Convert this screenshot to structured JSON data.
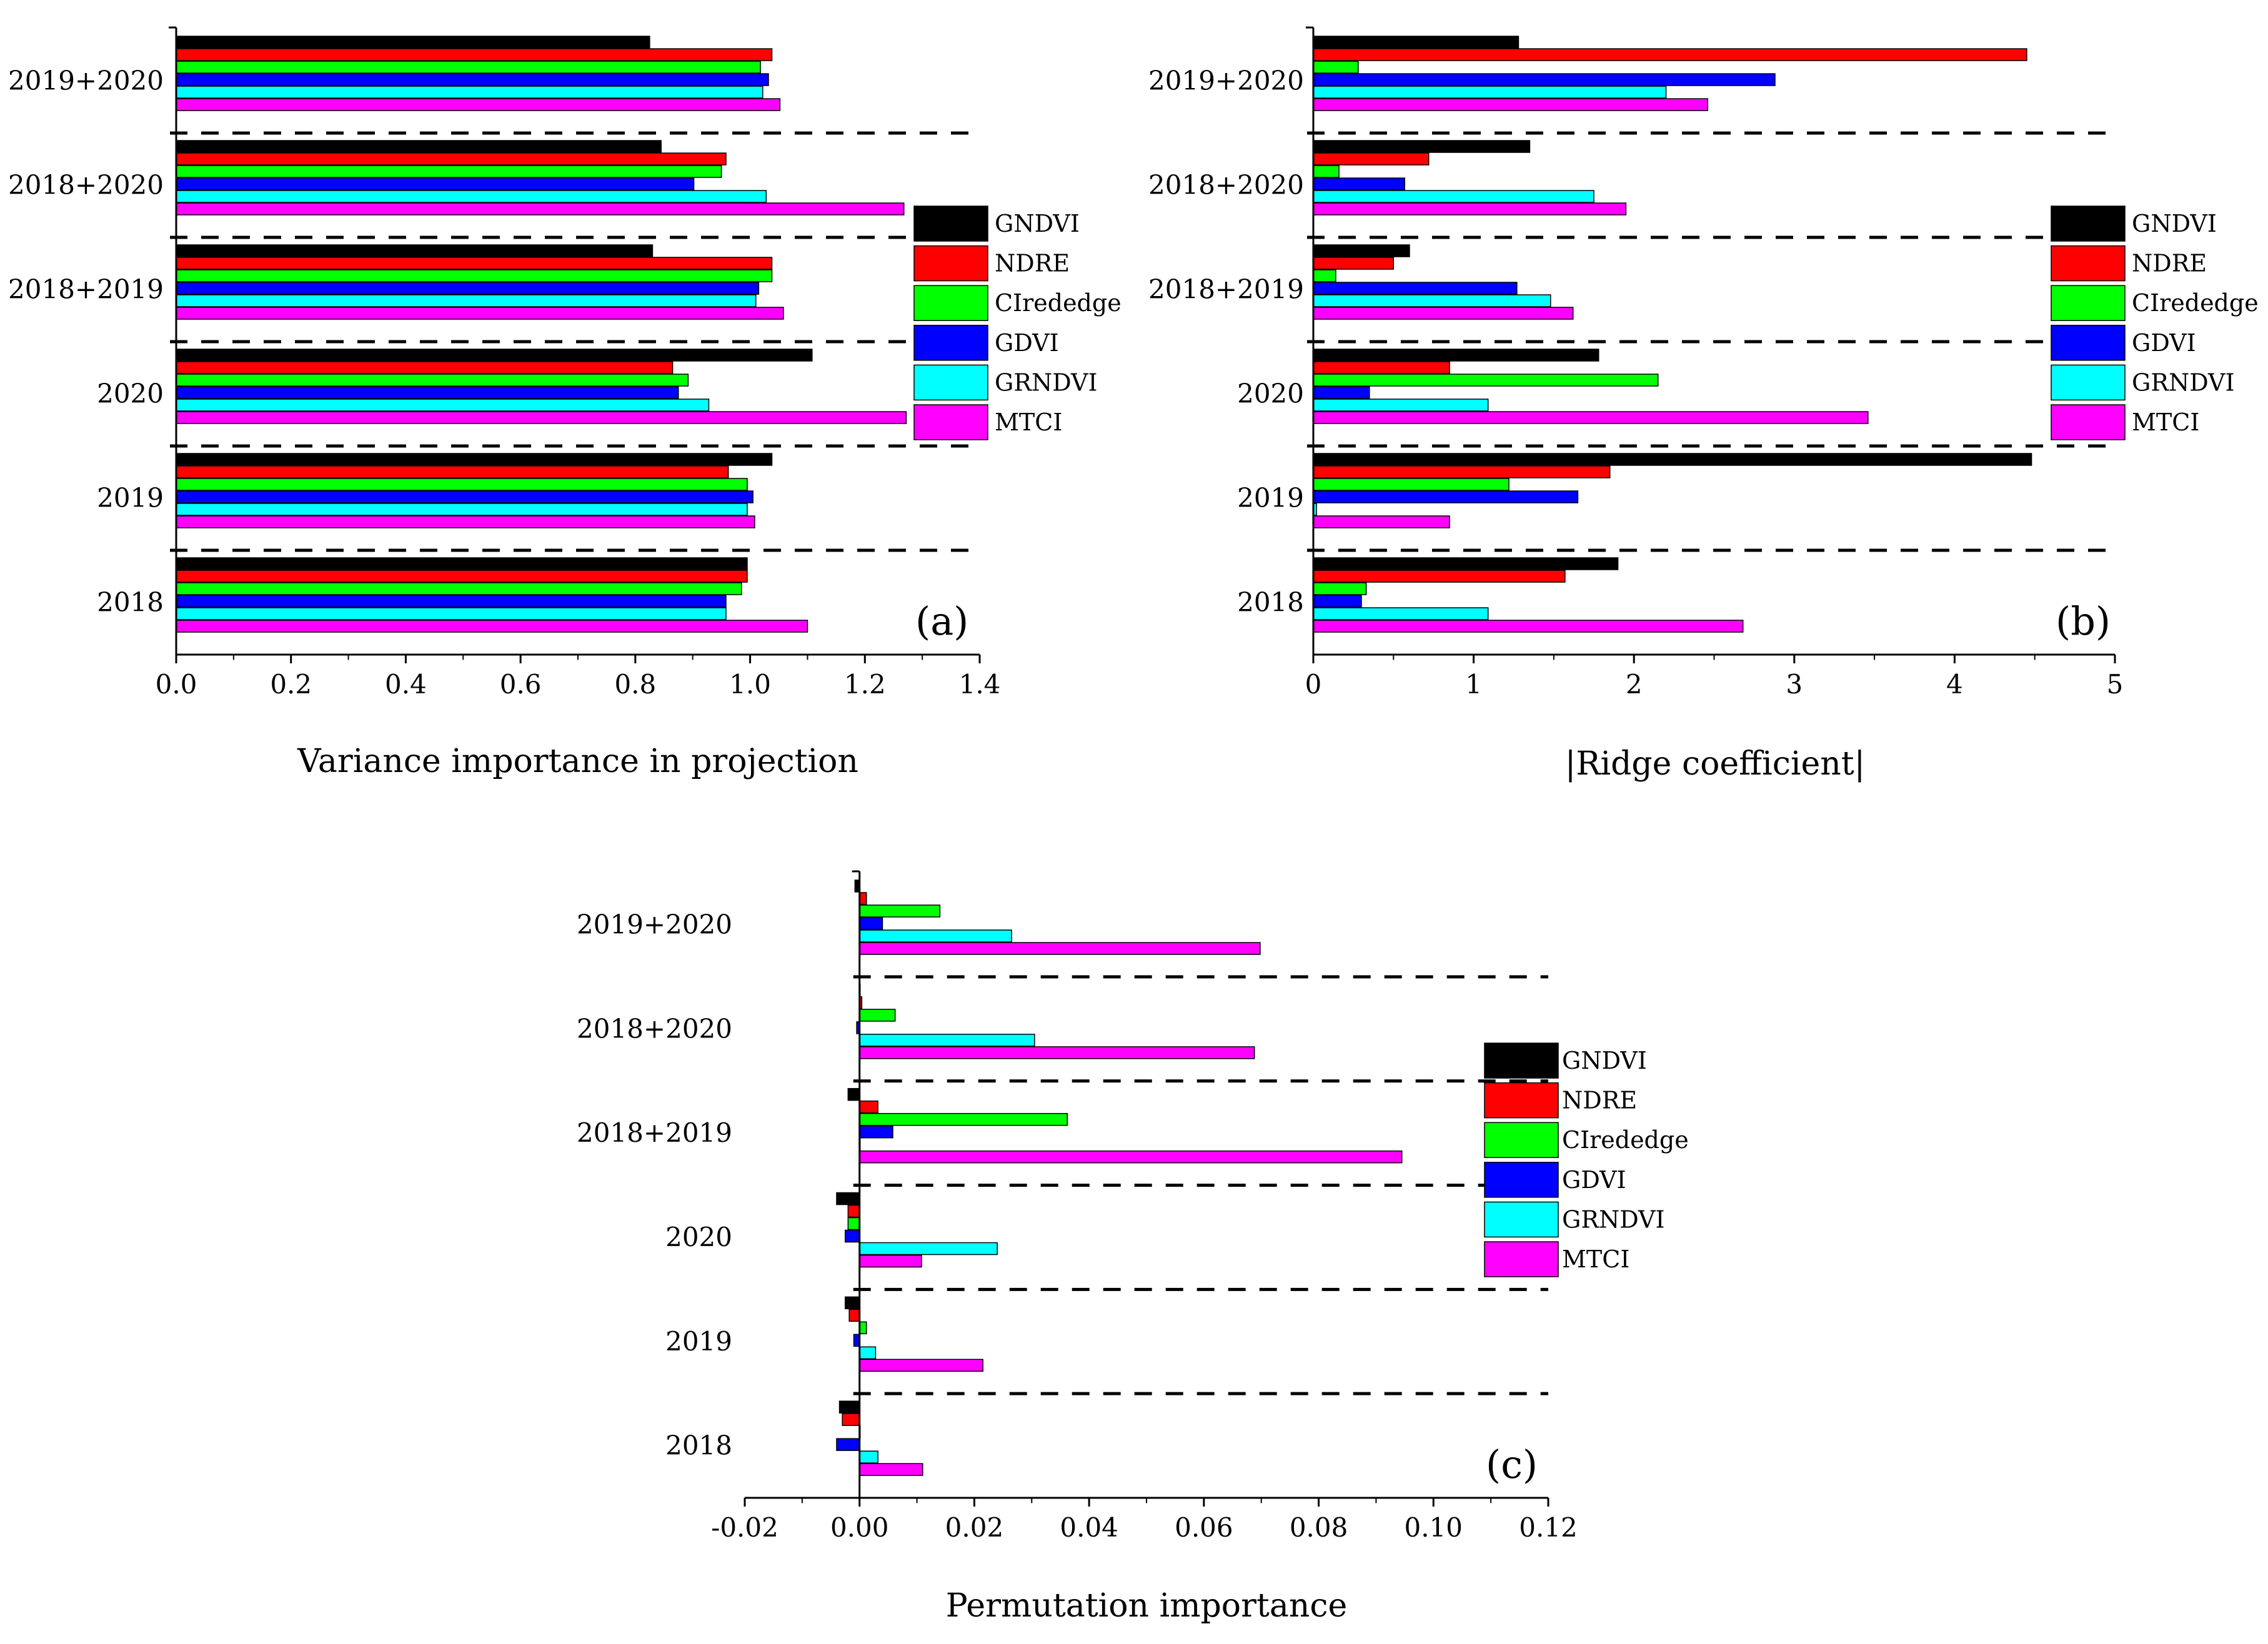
{
  "figure": {
    "series_names": [
      "GNDVI",
      "NDRE",
      "CIrededge",
      "GDVI",
      "GRNDVI",
      "MTCI"
    ],
    "colors": {
      "GNDVI": "#000000",
      "NDRE": "#ff0000",
      "CIrededge": "#00ff00",
      "GDVI": "#0000ff",
      "GRNDVI": "#00ffff",
      "MTCI": "#ff00ff"
    }
  },
  "chart_data": [
    {
      "type": "bar",
      "orientation": "horizontal",
      "panel_label": "(a)",
      "xlabel": "Variance importance in projection",
      "ylabel": "",
      "xlim": [
        0.0,
        1.4
      ],
      "xticks": [
        "0.0",
        "0.2",
        "0.4",
        "0.6",
        "0.8",
        "1.0",
        "1.2",
        "1.4"
      ],
      "categories": [
        "2019+2020",
        "2018+2020",
        "2018+2019",
        "2020",
        "2019",
        "2018"
      ],
      "legend_position": "right-middle",
      "series": [
        {
          "name": "GNDVI",
          "values": [
            0.825,
            0.845,
            0.83,
            1.108,
            1.038,
            0.995
          ]
        },
        {
          "name": "NDRE",
          "values": [
            1.038,
            0.958,
            1.038,
            0.865,
            0.962,
            0.995
          ]
        },
        {
          "name": "CIrededge",
          "values": [
            1.018,
            0.95,
            1.038,
            0.892,
            0.995,
            0.985
          ]
        },
        {
          "name": "GDVI",
          "values": [
            1.032,
            0.902,
            1.015,
            0.875,
            1.005,
            0.958
          ]
        },
        {
          "name": "GRNDVI",
          "values": [
            1.022,
            1.028,
            1.01,
            0.928,
            0.995,
            0.958
          ]
        },
        {
          "name": "MTCI",
          "values": [
            1.052,
            1.268,
            1.058,
            1.272,
            1.008,
            1.1
          ]
        }
      ]
    },
    {
      "type": "bar",
      "orientation": "horizontal",
      "panel_label": "(b)",
      "xlabel": "|Ridge coefficient|",
      "ylabel": "",
      "xlim": [
        0,
        5
      ],
      "xticks": [
        "0",
        "1",
        "2",
        "3",
        "4",
        "5"
      ],
      "categories": [
        "2019+2020",
        "2018+2020",
        "2018+2019",
        "2020",
        "2019",
        "2018"
      ],
      "legend_position": "right-middle",
      "series": [
        {
          "name": "GNDVI",
          "values": [
            1.28,
            1.35,
            0.6,
            1.78,
            4.48,
            1.9
          ]
        },
        {
          "name": "NDRE",
          "values": [
            4.45,
            0.72,
            0.5,
            0.85,
            1.85,
            1.57
          ]
        },
        {
          "name": "CIrededge",
          "values": [
            0.28,
            0.16,
            0.14,
            2.15,
            1.22,
            0.33
          ]
        },
        {
          "name": "GDVI",
          "values": [
            2.88,
            0.57,
            1.27,
            0.35,
            1.65,
            0.3
          ]
        },
        {
          "name": "GRNDVI",
          "values": [
            2.2,
            1.75,
            1.48,
            1.09,
            0.02,
            1.09
          ]
        },
        {
          "name": "MTCI",
          "values": [
            2.46,
            1.95,
            1.62,
            3.46,
            0.85,
            2.68
          ]
        }
      ]
    },
    {
      "type": "bar",
      "orientation": "horizontal",
      "panel_label": "(c)",
      "xlabel": "Permutation importance",
      "ylabel": "",
      "xlim": [
        -0.02,
        0.12
      ],
      "xticks": [
        "-0.02",
        "0.00",
        "0.02",
        "0.04",
        "0.06",
        "0.08",
        "0.10",
        "0.12"
      ],
      "categories": [
        "2019+2020",
        "2018+2020",
        "2018+2019",
        "2020",
        "2019",
        "2018"
      ],
      "legend_position": "right-middle",
      "series": [
        {
          "name": "GNDVI",
          "values": [
            -0.0008,
            0.0,
            -0.002,
            -0.004,
            -0.0025,
            -0.0035
          ]
        },
        {
          "name": "NDRE",
          "values": [
            0.0012,
            0.0004,
            0.0032,
            -0.002,
            -0.0018,
            -0.003
          ]
        },
        {
          "name": "CIrededge",
          "values": [
            0.014,
            0.0062,
            0.0362,
            -0.002,
            0.0012,
            0.0
          ]
        },
        {
          "name": "GDVI",
          "values": [
            0.004,
            -0.0005,
            0.0058,
            -0.0025,
            -0.001,
            -0.004
          ]
        },
        {
          "name": "GRNDVI",
          "values": [
            0.0265,
            0.0305,
            0.0,
            0.024,
            0.0028,
            0.0032
          ]
        },
        {
          "name": "MTCI",
          "values": [
            0.0698,
            0.0688,
            0.0945,
            0.0108,
            0.0215,
            0.011
          ]
        }
      ]
    }
  ]
}
